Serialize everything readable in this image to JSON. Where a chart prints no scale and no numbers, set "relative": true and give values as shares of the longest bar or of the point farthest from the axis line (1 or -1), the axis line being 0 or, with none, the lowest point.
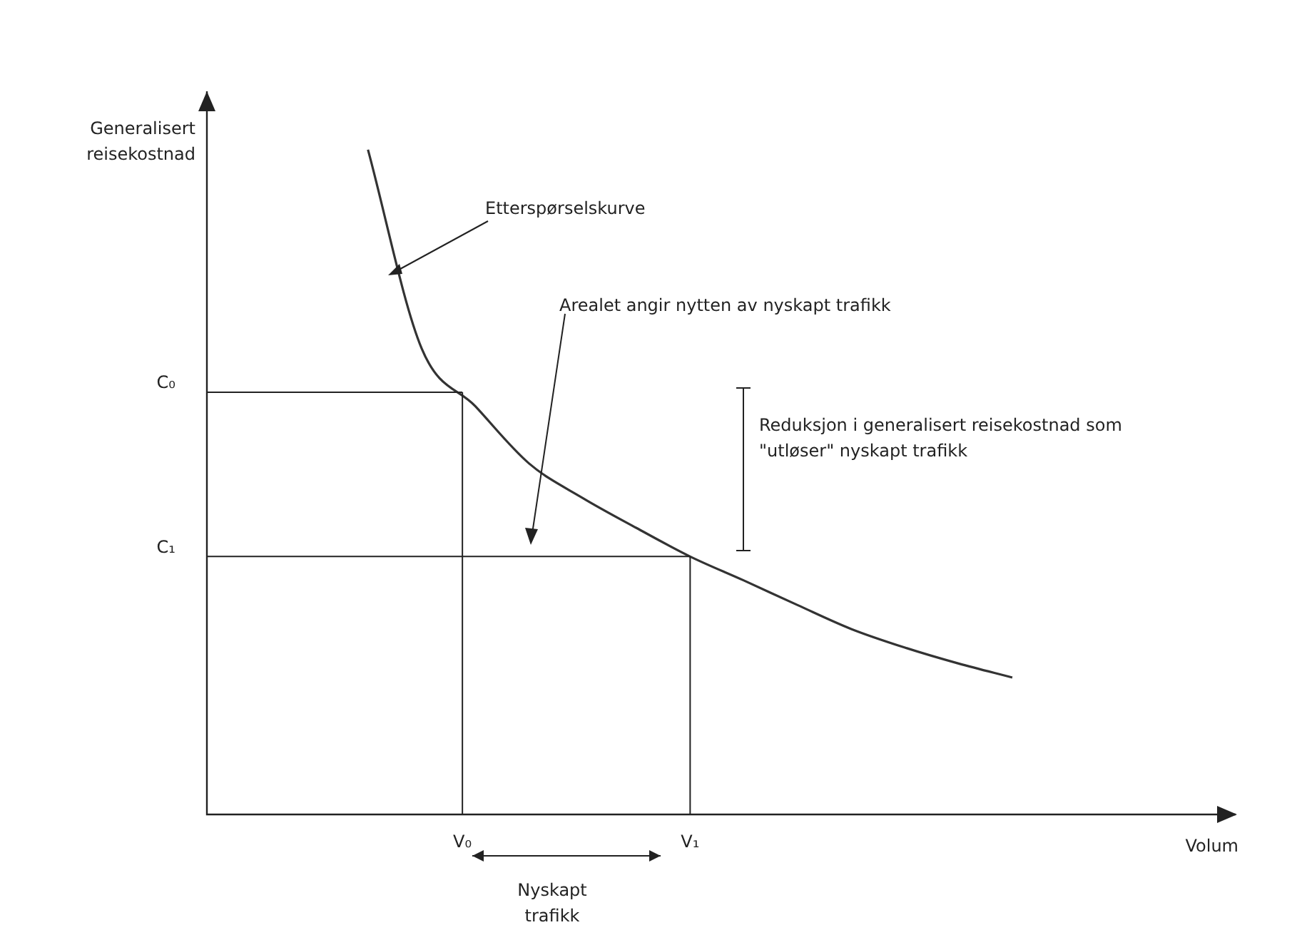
{
  "chart_data": {
    "type": "line",
    "relative": true,
    "xlabel": "Volum",
    "ylabel": "Generalisert reisekostnad",
    "categories": [
      null,
      null,
      null,
      null,
      null,
      null,
      null,
      null,
      null,
      null,
      null,
      null,
      null,
      null,
      null,
      null,
      null,
      null,
      null,
      null
    ],
    "series": [
      {
        "color": "#333333",
        "values": [
          null,
          null,
          null,
          1,
          0.701,
          0.614,
          0.528,
          0.476,
          0.431,
          0.388,
          0.352,
          0.315,
          0.279,
          0.251,
          0.227,
          0.206,
          null,
          null,
          null,
          null
        ]
      }
    ],
    "ref_lines": [
      {
        "axis": "y",
        "value": 0.635,
        "label": "C₀"
      },
      {
        "axis": "y",
        "value": 0.388,
        "label": "C₁"
      }
    ],
    "annotations": [
      {
        "text": "V₀",
        "y": 0.635
      },
      {
        "text": "V₁",
        "y": 0.388
      },
      "Etterspørselskurve",
      "Arealet angir nytten av nyskapt trafikk",
      "Reduksjon i generalisert reisekostnad som \"utløser\" nyskapt trafikk",
      "Nyskapt trafikk"
    ],
    "legend": false,
    "marker": "none",
    "line_style": "solid"
  }
}
